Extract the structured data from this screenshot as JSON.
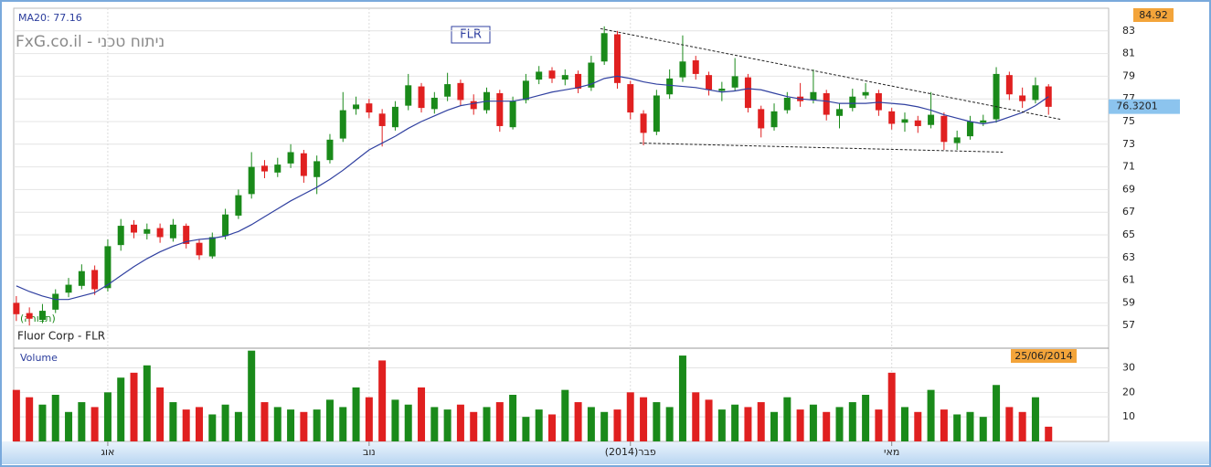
{
  "chart_data": [
    {
      "type": "candlestick",
      "title": "Fluor Corp - FLR",
      "watermark": "FxG.co.il - ניתוח טכני",
      "symbol": "FLR",
      "ma_label": "MA20: 77.16",
      "annotation": "(תצורה)",
      "max_price": 84.92,
      "last_price": 76.3201,
      "up_color": "#1a8a1a",
      "down_color": "#e02020",
      "ma_color": "#3040a0",
      "ylim": [
        55,
        85
      ],
      "yticks": [
        57,
        59,
        61,
        63,
        65,
        67,
        69,
        71,
        73,
        75,
        77,
        79,
        81,
        83
      ],
      "xlim": [
        -0.2,
        83.6
      ],
      "xticks": [
        {
          "value": 7,
          "label": "אוג"
        },
        {
          "value": 27,
          "label": "נוב"
        },
        {
          "value": 47,
          "label": "(2014)פבר"
        },
        {
          "value": 67,
          "label": "מאי"
        }
      ],
      "grid": true,
      "open": [
        59.0,
        58.1,
        57.5,
        58.4,
        59.9,
        60.5,
        61.9,
        60.3,
        64.1,
        65.9,
        65.1,
        65.6,
        64.7,
        65.8,
        64.3,
        63.1,
        64.9,
        66.7,
        68.6,
        71.1,
        70.5,
        71.3,
        72.2,
        70.1,
        71.6,
        73.5,
        76.1,
        76.6,
        75.7,
        74.5,
        76.4,
        78.1,
        76.1,
        77.2,
        78.4,
        76.8,
        76.0,
        77.5,
        74.5,
        76.9,
        78.7,
        79.5,
        78.7,
        79.2,
        78.0,
        80.3,
        82.7,
        78.3,
        75.7,
        74.1,
        77.4,
        78.9,
        80.4,
        79.1,
        77.7,
        78.0,
        78.9,
        76.1,
        74.5,
        76.0,
        77.2,
        76.9,
        77.5,
        75.5,
        76.2,
        77.3,
        77.5,
        75.9,
        74.9,
        75.1,
        74.7,
        75.5,
        73.1,
        73.7,
        74.9,
        75.2,
        79.1,
        77.3,
        76.9,
        78.1
      ],
      "high": [
        59.6,
        58.6,
        58.9,
        60.2,
        61.2,
        62.4,
        62.3,
        64.6,
        66.4,
        66.3,
        66.0,
        66.0,
        66.4,
        66.0,
        64.6,
        65.2,
        67.3,
        69.0,
        72.3,
        71.6,
        71.8,
        73.0,
        72.5,
        72.0,
        73.9,
        77.6,
        77.2,
        77.0,
        76.1,
        76.8,
        79.2,
        78.4,
        77.6,
        79.3,
        78.7,
        77.4,
        78.0,
        77.8,
        77.2,
        79.2,
        79.9,
        79.8,
        79.6,
        79.5,
        80.8,
        83.4,
        83.0,
        78.6,
        76.0,
        77.8,
        79.6,
        82.6,
        80.8,
        79.4,
        78.5,
        80.6,
        79.2,
        76.4,
        76.6,
        77.6,
        78.4,
        79.6,
        77.8,
        76.6,
        77.9,
        78.4,
        77.8,
        76.2,
        75.8,
        75.5,
        77.6,
        75.8,
        74.2,
        75.5,
        75.6,
        79.8,
        79.4,
        78.0,
        78.9,
        78.3
      ],
      "low": [
        57.4,
        57.0,
        57.2,
        58.1,
        59.5,
        60.2,
        59.7,
        60.0,
        63.6,
        64.7,
        64.6,
        64.3,
        64.4,
        63.8,
        62.8,
        62.9,
        64.6,
        66.4,
        68.2,
        70.0,
        70.1,
        70.9,
        69.6,
        68.6,
        71.3,
        73.2,
        75.6,
        75.3,
        72.8,
        74.2,
        76.0,
        75.8,
        75.7,
        76.8,
        76.4,
        75.6,
        75.7,
        74.1,
        74.3,
        76.6,
        78.3,
        78.4,
        78.2,
        77.5,
        77.7,
        80.0,
        77.9,
        75.2,
        72.9,
        73.8,
        77.0,
        78.5,
        78.7,
        77.3,
        76.8,
        77.7,
        75.8,
        73.6,
        74.2,
        75.7,
        76.3,
        76.6,
        75.1,
        74.4,
        75.9,
        77.0,
        75.5,
        74.3,
        74.1,
        74.0,
        74.4,
        72.5,
        72.5,
        73.4,
        74.6,
        74.9,
        76.9,
        76.2,
        76.6,
        75.6
      ],
      "close": [
        58.0,
        57.6,
        58.3,
        59.8,
        60.6,
        61.8,
        60.2,
        64.0,
        65.8,
        65.2,
        65.5,
        64.8,
        65.9,
        64.2,
        63.2,
        64.8,
        66.8,
        68.5,
        71.0,
        70.6,
        71.2,
        72.3,
        70.2,
        71.5,
        73.4,
        76.0,
        76.5,
        75.8,
        74.6,
        76.3,
        78.2,
        76.2,
        77.1,
        78.3,
        76.9,
        76.1,
        77.6,
        74.6,
        76.8,
        78.6,
        79.4,
        78.8,
        79.1,
        77.9,
        80.2,
        82.8,
        78.4,
        75.8,
        74.0,
        77.3,
        78.8,
        80.3,
        79.2,
        77.8,
        77.9,
        79.0,
        76.2,
        74.4,
        75.9,
        77.1,
        76.8,
        77.6,
        75.6,
        76.1,
        77.2,
        77.6,
        76.0,
        74.8,
        75.2,
        74.6,
        75.6,
        73.2,
        73.6,
        75.0,
        75.1,
        79.2,
        77.4,
        76.8,
        78.2,
        76.3
      ],
      "ma20": [
        60.5,
        60.0,
        59.6,
        59.3,
        59.3,
        59.6,
        59.9,
        60.6,
        61.4,
        62.2,
        62.9,
        63.5,
        64.0,
        64.4,
        64.6,
        64.7,
        64.9,
        65.3,
        65.9,
        66.6,
        67.3,
        68.0,
        68.6,
        69.2,
        69.9,
        70.7,
        71.6,
        72.5,
        73.1,
        73.7,
        74.4,
        75.0,
        75.5,
        76.0,
        76.4,
        76.6,
        76.8,
        76.8,
        76.8,
        77.0,
        77.3,
        77.6,
        77.8,
        78.0,
        78.3,
        78.8,
        79.0,
        78.8,
        78.5,
        78.3,
        78.2,
        78.1,
        78.0,
        77.8,
        77.6,
        77.7,
        77.9,
        77.8,
        77.5,
        77.2,
        77.0,
        76.9,
        76.8,
        76.6,
        76.6,
        76.6,
        76.7,
        76.6,
        76.5,
        76.3,
        76.0,
        75.6,
        75.3,
        75.0,
        74.8,
        75.0,
        75.4,
        75.8,
        76.4,
        77.2
      ],
      "trendlines": [
        {
          "x": [
            44.7,
            79.9
          ],
          "y": [
            83.2,
            75.2
          ]
        },
        {
          "x": [
            47.7,
            75.5
          ],
          "y": [
            73.1,
            72.3
          ]
        }
      ]
    },
    {
      "type": "bar",
      "title": "Volume",
      "date_label": "25/06/2014",
      "ylim": [
        0,
        38
      ],
      "yticks": [
        10,
        20,
        30
      ],
      "values": [
        21,
        18,
        15,
        19,
        12,
        16,
        14,
        20,
        26,
        28,
        31,
        22,
        16,
        13,
        14,
        11,
        15,
        12,
        37,
        16,
        14,
        13,
        12,
        13,
        17,
        14,
        22,
        18,
        33,
        17,
        15,
        22,
        14,
        13,
        15,
        12,
        14,
        16,
        19,
        10,
        13,
        11,
        21,
        16,
        14,
        12,
        13,
        20,
        18,
        16,
        14,
        35,
        20,
        17,
        13,
        15,
        14,
        16,
        12,
        18,
        13,
        15,
        12,
        14,
        16,
        19,
        13,
        28,
        14,
        12,
        21,
        13,
        11,
        12,
        10,
        23,
        14,
        12,
        18,
        6
      ]
    }
  ]
}
